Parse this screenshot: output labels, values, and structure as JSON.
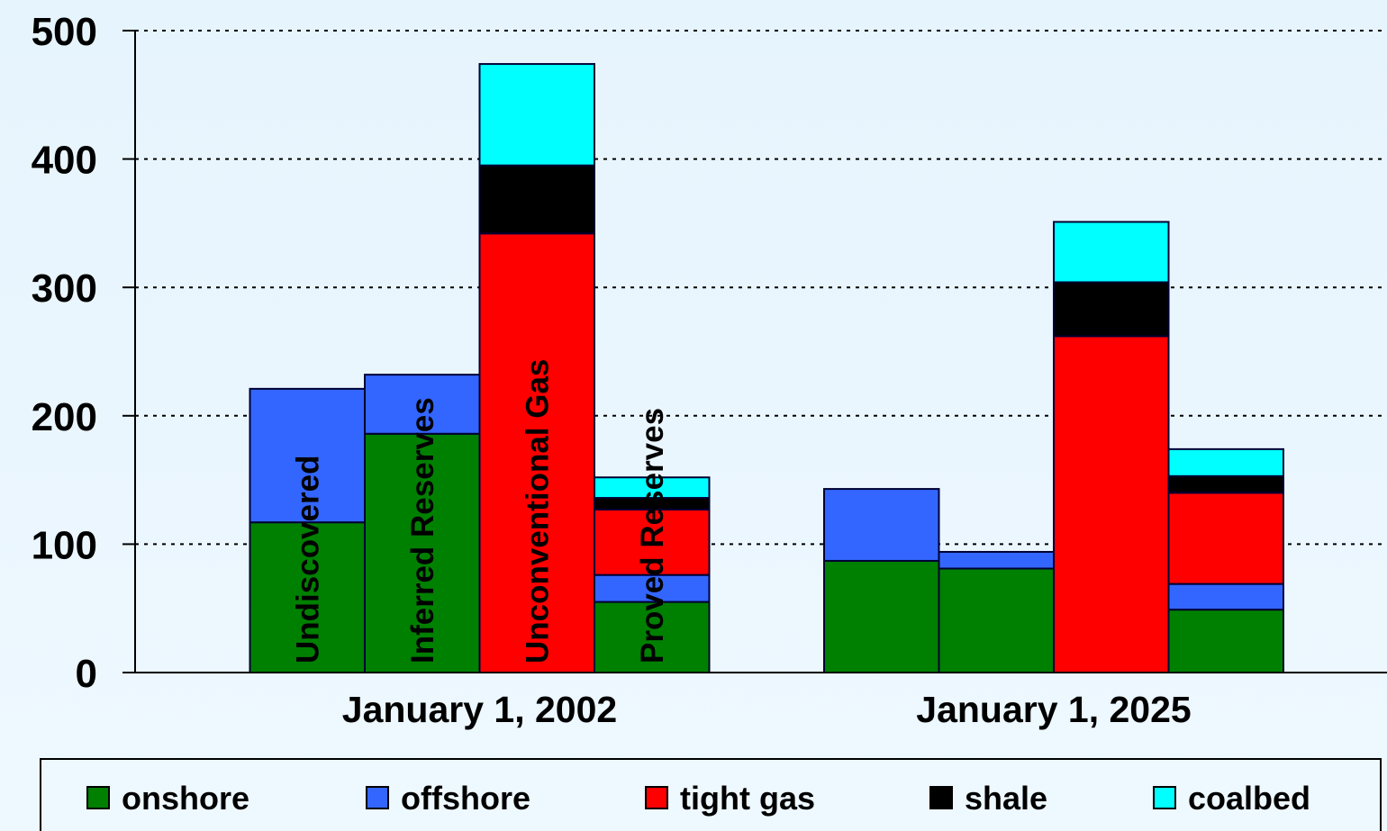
{
  "chart_data": {
    "type": "bar",
    "stacked": true,
    "groups": [
      "January 1, 2002",
      "January 1, 2025"
    ],
    "categories": [
      "Undiscovered",
      "Inferred Reserves",
      "Unconventional Gas",
      "Proved Reserves",
      null,
      null,
      null,
      null
    ],
    "series": [
      {
        "name": "onshore",
        "color": "#008000",
        "values": [
          117,
          186,
          0,
          55,
          87,
          81,
          0,
          49
        ]
      },
      {
        "name": "offshore",
        "color": "#3366ff",
        "values": [
          104,
          46,
          0,
          21,
          56,
          13,
          0,
          20
        ]
      },
      {
        "name": "tight gas",
        "color": "#ff0000",
        "values": [
          0,
          0,
          342,
          51,
          0,
          0,
          262,
          71
        ]
      },
      {
        "name": "shale",
        "color": "#000000",
        "values": [
          0,
          0,
          53,
          9,
          0,
          0,
          42,
          13
        ]
      },
      {
        "name": "coalbed",
        "color": "#00ffff",
        "values": [
          0,
          0,
          79,
          16,
          0,
          0,
          47,
          21
        ]
      }
    ],
    "ylim": [
      0,
      500
    ],
    "yticks": [
      0,
      100,
      200,
      300,
      400,
      500
    ],
    "grid": true,
    "legend": "bottom"
  }
}
